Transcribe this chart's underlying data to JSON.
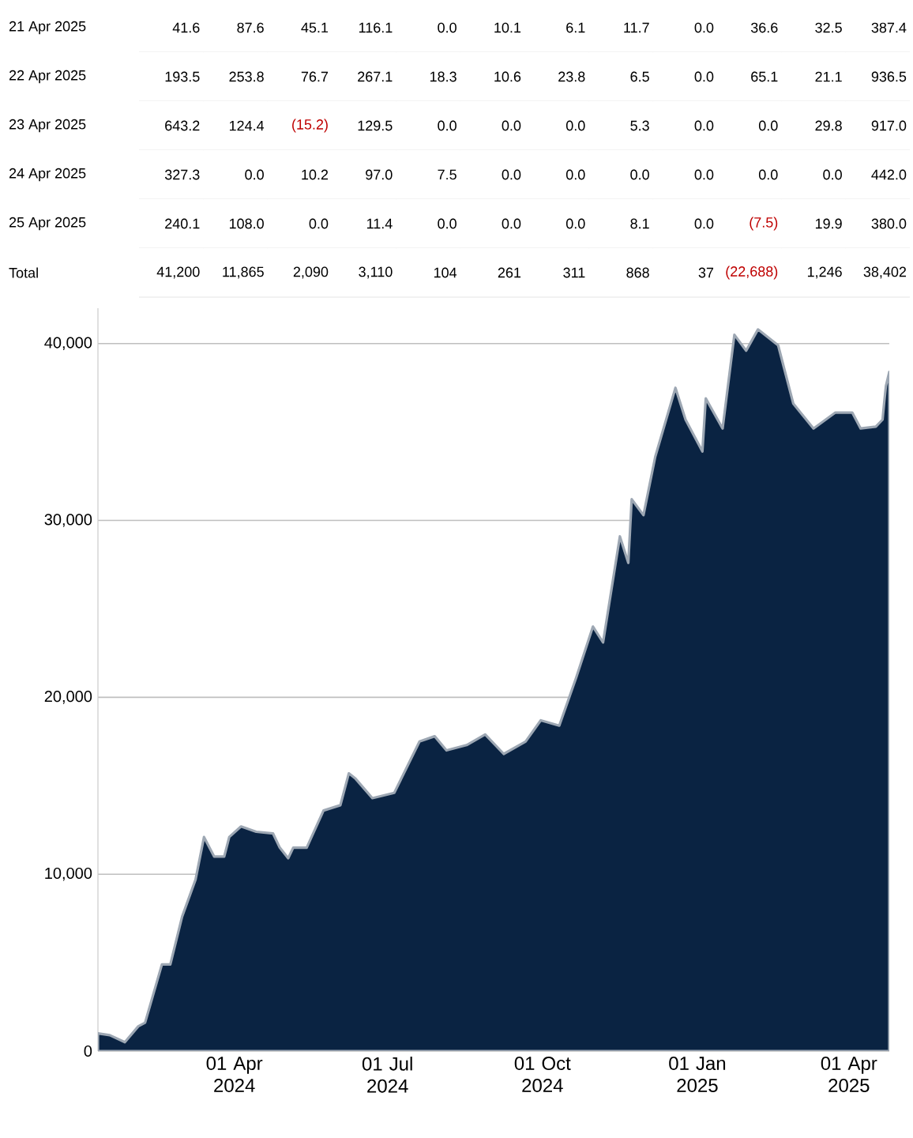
{
  "chart_data": [
    {
      "type": "other",
      "categories": [
        null,
        null,
        null,
        null,
        null,
        null,
        null,
        null,
        null,
        null,
        null,
        null
      ],
      "y_categories": [
        "21 Apr 2025",
        "22 Apr 2025",
        "23 Apr 2025",
        "24 Apr 2025",
        "25 Apr 2025",
        "Total"
      ],
      "cell_labels": [
        [
          "41.6",
          "87.6",
          "45.1",
          "116.1",
          "0.0",
          "10.1",
          "6.1",
          "11.7",
          "0.0",
          "36.6",
          "32.5",
          "387.4"
        ],
        [
          "193.5",
          "253.8",
          "76.7",
          "267.1",
          "18.3",
          "10.6",
          "23.8",
          "6.5",
          "0.0",
          "65.1",
          "21.1",
          "936.5"
        ],
        [
          "643.2",
          "124.4",
          "(15.2)",
          "129.5",
          "0.0",
          "0.0",
          "0.0",
          "5.3",
          "0.0",
          "0.0",
          "29.8",
          "917.0"
        ],
        [
          "327.3",
          "0.0",
          "10.2",
          "97.0",
          "7.5",
          "0.0",
          "0.0",
          "0.0",
          "0.0",
          "0.0",
          "0.0",
          "442.0"
        ],
        [
          "240.1",
          "108.0",
          "0.0",
          "11.4",
          "0.0",
          "0.0",
          "0.0",
          "8.1",
          "0.0",
          "(7.5)",
          "19.9",
          "380.0"
        ],
        [
          "41,200",
          "11,865",
          "2,090",
          "3,110",
          "104",
          "261",
          "311",
          "868",
          "37",
          "(22,688)",
          "1,246",
          "38,402"
        ]
      ]
    },
    {
      "type": "area",
      "series": [
        {
          "color": "#0a2342",
          "x": [
            "2024-01-11",
            "2024-01-18",
            "2024-01-27",
            "2024-02-04",
            "2024-02-08",
            "2024-02-18",
            "2024-02-23",
            "2024-03-01",
            "2024-03-09",
            "2024-03-14",
            "2024-03-20",
            "2024-03-26",
            "2024-03-29",
            "2024-04-05",
            "2024-04-14",
            "2024-04-24",
            "2024-04-28",
            "2024-05-03",
            "2024-05-06",
            "2024-05-14",
            "2024-05-24",
            "2024-06-03",
            "2024-06-08",
            "2024-06-12",
            "2024-06-22",
            "2024-07-05",
            "2024-07-20",
            "2024-07-29",
            "2024-08-05",
            "2024-08-17",
            "2024-08-28",
            "2024-09-08",
            "2024-09-21",
            "2024-09-30",
            "2024-10-11",
            "2024-10-21",
            "2024-10-31",
            "2024-11-06",
            "2024-11-16",
            "2024-11-21",
            "2024-11-23",
            "2024-11-30",
            "2024-12-07",
            "2024-12-19",
            "2024-12-25",
            "2025-01-04",
            "2025-01-06",
            "2025-01-16",
            "2025-01-23",
            "2025-01-30",
            "2025-02-06",
            "2025-02-18",
            "2025-02-27",
            "2025-03-11",
            "2025-03-24",
            "2025-04-03",
            "2025-04-08",
            "2025-04-17",
            "2025-04-21",
            "2025-04-22",
            "2025-04-23",
            "2025-04-24",
            "2025-04-25"
          ],
          "values": [
            1000,
            900,
            500,
            1400,
            1600,
            4900,
            4900,
            7600,
            9700,
            12100,
            11000,
            11000,
            12100,
            12700,
            12400,
            12300,
            11500,
            10900,
            11500,
            11500,
            13600,
            13900,
            15700,
            15400,
            14300,
            14600,
            17500,
            17800,
            17000,
            17300,
            17900,
            16800,
            17500,
            18700,
            18400,
            21100,
            24000,
            23100,
            29100,
            27600,
            31200,
            30300,
            33600,
            37500,
            35700,
            33900,
            36900,
            35200,
            40500,
            39600,
            40800,
            39900,
            36600,
            35200,
            36100,
            36100,
            35200,
            35300,
            35700,
            36700,
            37600,
            38000,
            38400
          ]
        }
      ],
      "xlim": [
        "2024-01-11",
        "2025-04-25"
      ],
      "xticks": [
        {
          "value": "2024-04-01",
          "label": "01 Apr 2024"
        },
        {
          "value": "2024-07-01",
          "label": "01 Jul 2024"
        },
        {
          "value": "2024-10-01",
          "label": "01 Oct 2024"
        },
        {
          "value": "2025-01-01",
          "label": "01 Jan 2025"
        },
        {
          "value": "2025-04-01",
          "label": "01 Apr 2025"
        }
      ],
      "ylim": [
        0,
        42000
      ],
      "yticks": [
        0,
        {
          "value": 10000,
          "label": "10,000"
        },
        {
          "value": 20000,
          "label": "20,000"
        },
        {
          "value": 30000,
          "label": "30,000"
        },
        {
          "value": 40000,
          "label": "40,000"
        }
      ],
      "grid": "y"
    }
  ]
}
